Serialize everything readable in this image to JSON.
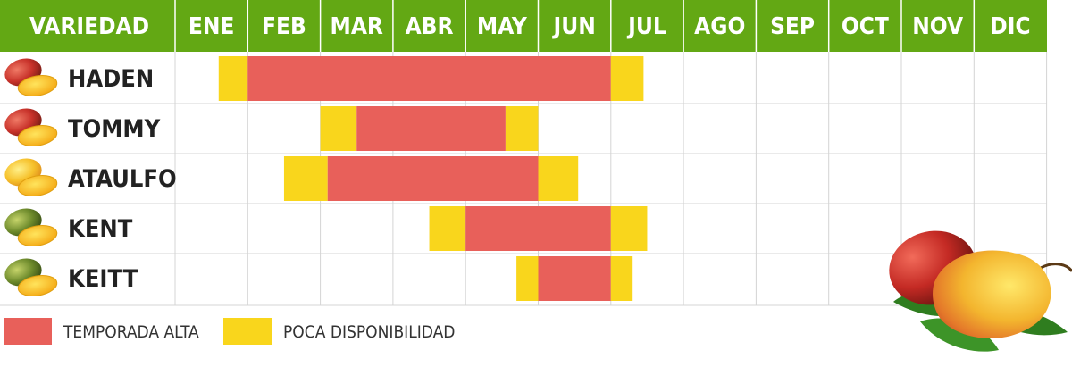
{
  "chart_data": {
    "type": "gantt",
    "header_label": "VARIEDAD",
    "months": [
      "ENE",
      "FEB",
      "MAR",
      "ABR",
      "MAY",
      "JUN",
      "JUL",
      "AGO",
      "SEP",
      "OCT",
      "NOV",
      "DIC"
    ],
    "varieties": [
      {
        "name": "HADEN",
        "segments": [
          {
            "level": "low",
            "start": 1.6,
            "end": 2.0
          },
          {
            "level": "high",
            "start": 2.0,
            "end": 7.0
          },
          {
            "level": "low",
            "start": 7.0,
            "end": 7.45
          }
        ]
      },
      {
        "name": "TOMMY",
        "segments": [
          {
            "level": "low",
            "start": 3.0,
            "end": 3.5
          },
          {
            "level": "high",
            "start": 3.5,
            "end": 5.55
          },
          {
            "level": "low",
            "start": 5.55,
            "end": 6.0
          }
        ]
      },
      {
        "name": "ATAULFO",
        "segments": [
          {
            "level": "low",
            "start": 2.5,
            "end": 3.1
          },
          {
            "level": "high",
            "start": 3.1,
            "end": 6.0
          },
          {
            "level": "low",
            "start": 6.0,
            "end": 6.55
          }
        ]
      },
      {
        "name": "KENT",
        "segments": [
          {
            "level": "low",
            "start": 4.5,
            "end": 5.0
          },
          {
            "level": "high",
            "start": 5.0,
            "end": 7.0
          },
          {
            "level": "low",
            "start": 7.0,
            "end": 7.5
          }
        ]
      },
      {
        "name": "KEITT",
        "segments": [
          {
            "level": "low",
            "start": 5.7,
            "end": 6.0
          },
          {
            "level": "high",
            "start": 6.0,
            "end": 7.0
          },
          {
            "level": "low",
            "start": 7.0,
            "end": 7.3
          }
        ]
      }
    ],
    "legend": [
      {
        "key": "high",
        "label": "TEMPORADA ALTA",
        "color": "#e8605a"
      },
      {
        "key": "low",
        "label": "POCA DISPONIBILIDAD",
        "color": "#f9d61c"
      }
    ],
    "colors": {
      "header": "#63a814",
      "header_text": "#ffffff",
      "grid": "#d4d4d4",
      "label_text": "#222222"
    }
  }
}
